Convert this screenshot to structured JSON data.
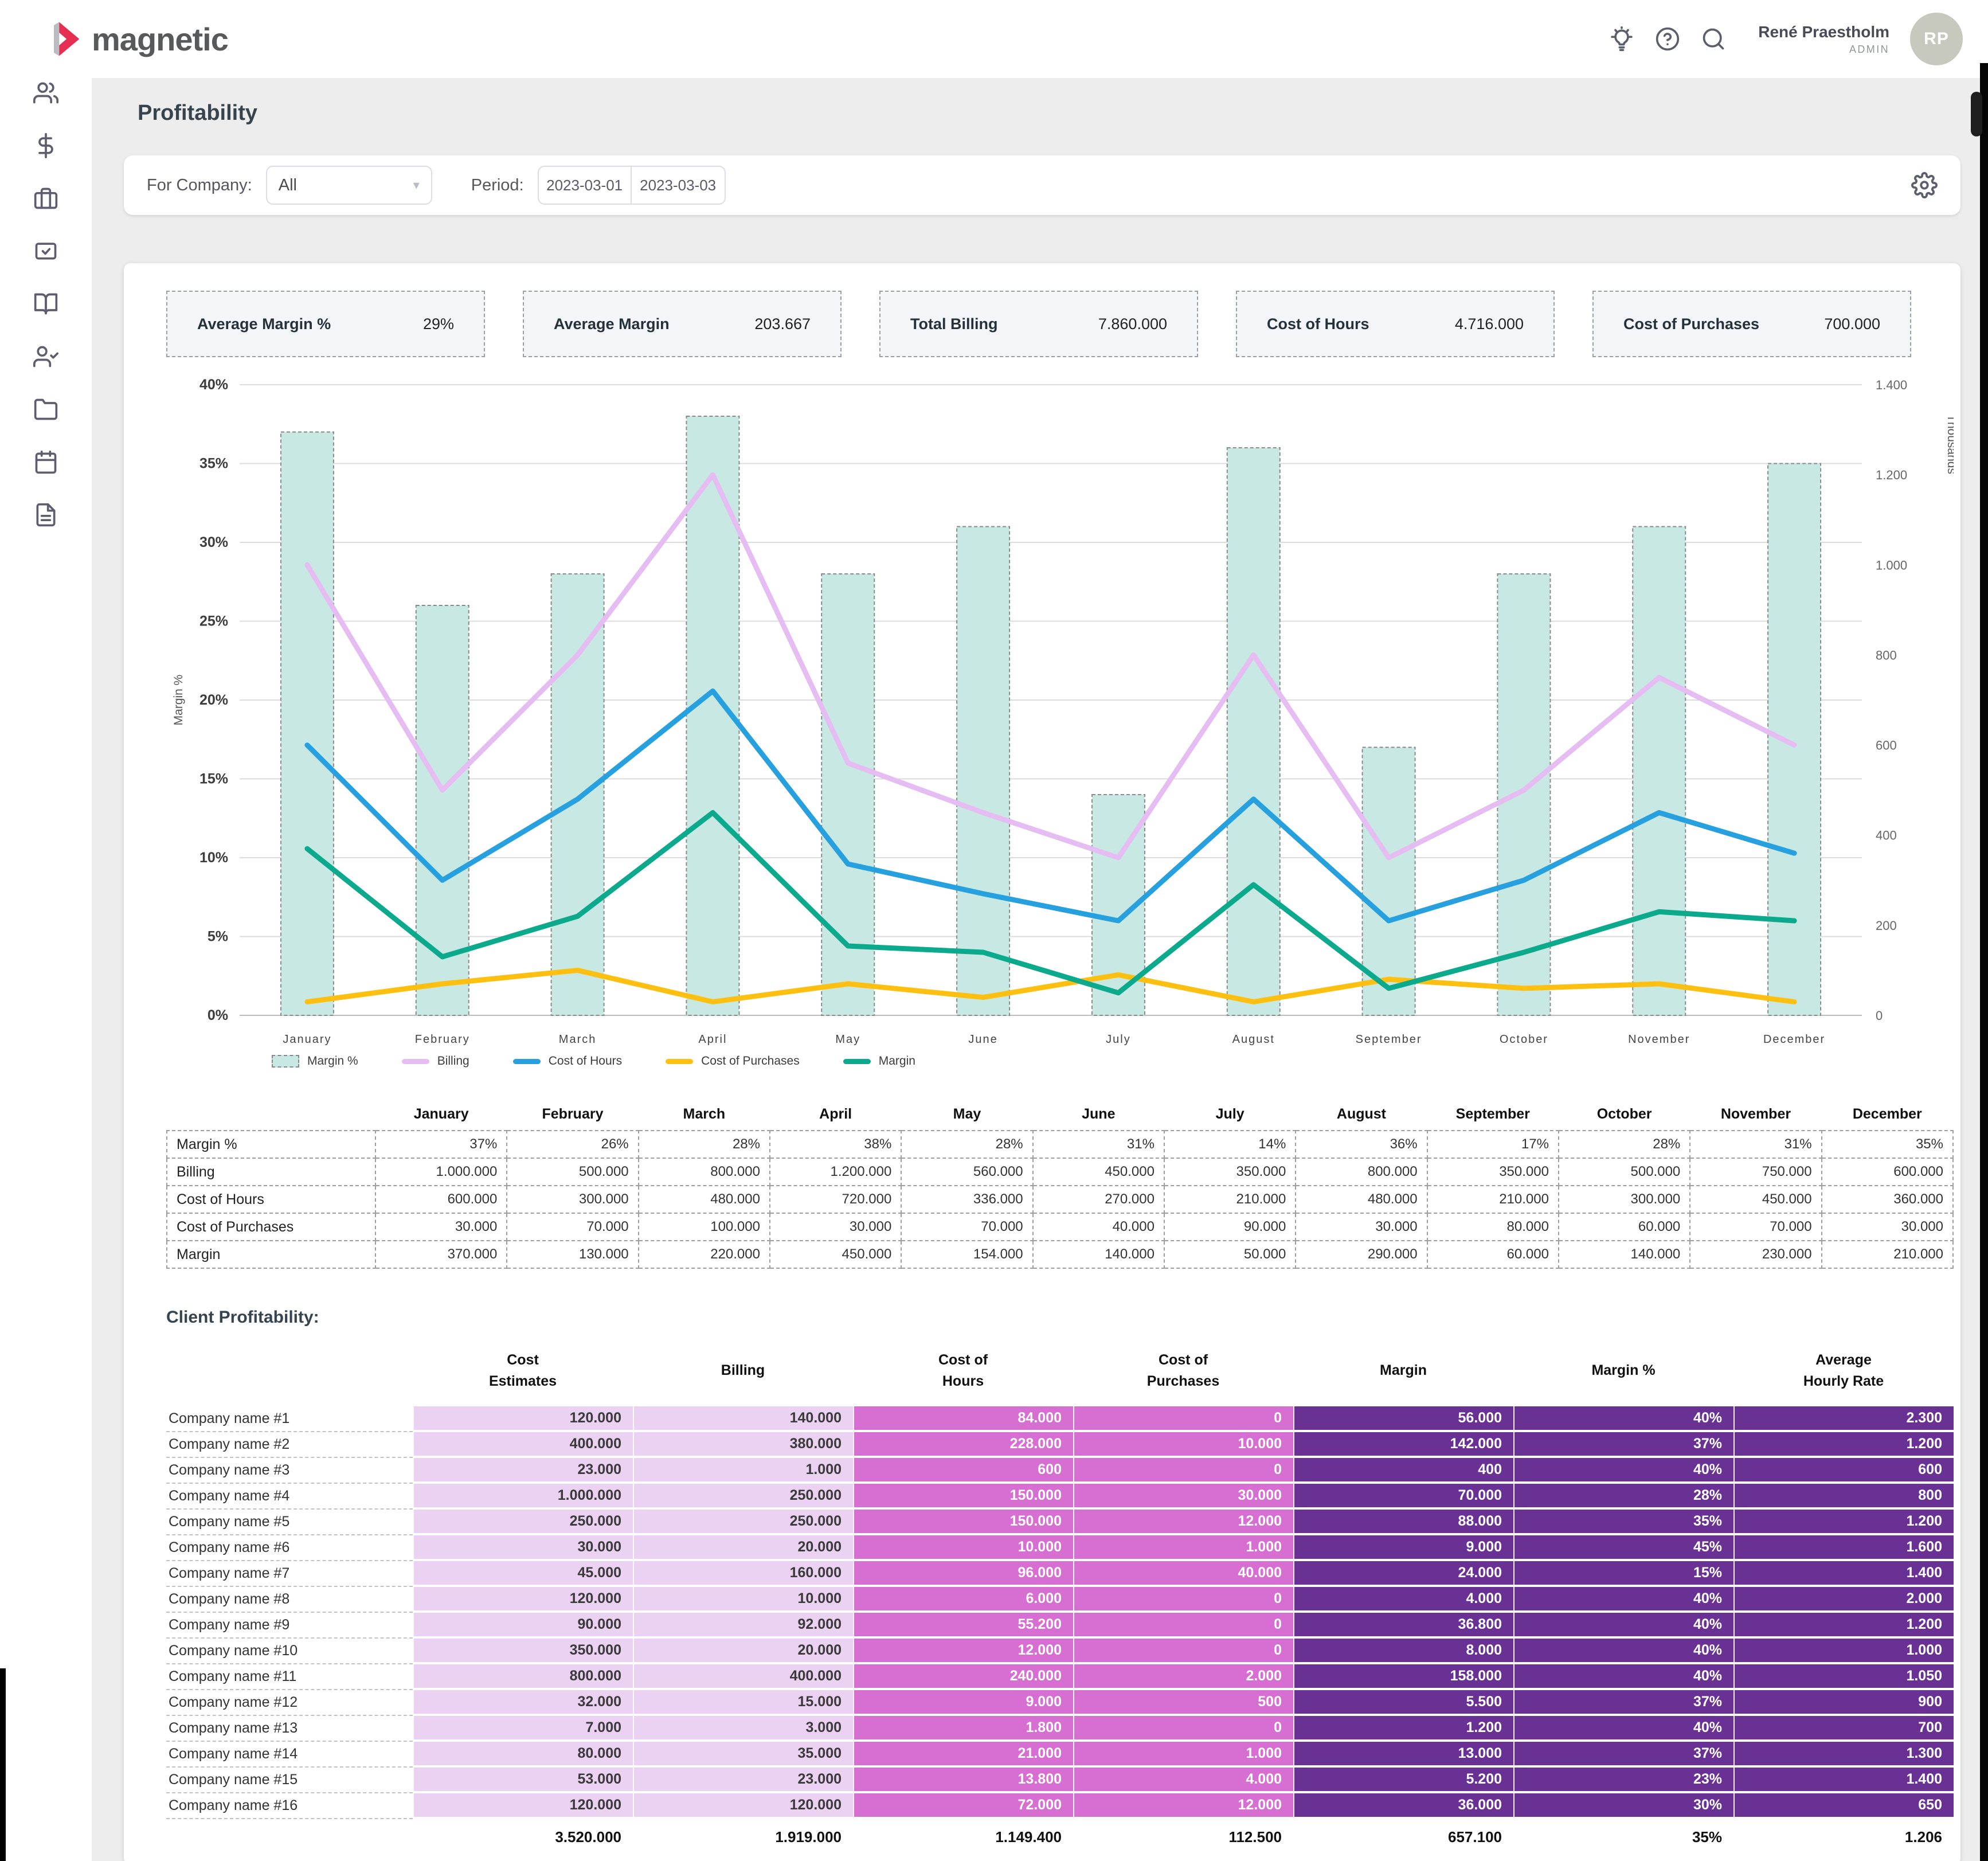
{
  "topbar": {
    "brand": "magnetic",
    "user_name": "René Praestholm",
    "user_role": "ADMIN",
    "avatar_initials": "RP",
    "icons": [
      "lightbulb-icon",
      "help-icon",
      "search-icon"
    ]
  },
  "sidebar": {
    "icons": [
      "home",
      "users",
      "dollar",
      "briefcase",
      "tasks",
      "book",
      "user-check",
      "folder",
      "calendar",
      "document"
    ]
  },
  "page": {
    "title": "Profitability"
  },
  "filters": {
    "company_label": "For Company:",
    "company_value": "All",
    "period_label": "Period:",
    "period_from": "2023-03-01",
    "period_to": "2023-03-03"
  },
  "kpis": [
    {
      "label": "Average Margin %",
      "value": "29%"
    },
    {
      "label": "Average Margin",
      "value": "203.667"
    },
    {
      "label": "Total Billing",
      "value": "7.860.000"
    },
    {
      "label": "Cost of Hours",
      "value": "4.716.000"
    },
    {
      "label": "Cost of Purchases",
      "value": "700.000"
    }
  ],
  "chart_data": {
    "type": "combo",
    "categories": [
      "January",
      "February",
      "March",
      "April",
      "May",
      "June",
      "July",
      "August",
      "September",
      "October",
      "November",
      "December"
    ],
    "bar_series": {
      "name": "Margin %",
      "values": [
        37,
        26,
        28,
        38,
        28,
        31,
        14,
        36,
        17,
        28,
        31,
        35
      ],
      "axis": "left",
      "color": "#c8e9e3"
    },
    "line_series": [
      {
        "name": "Billing",
        "values": [
          1000,
          500,
          800,
          1200,
          560,
          450,
          350,
          800,
          350,
          500,
          750,
          600
        ],
        "color": "#e5bdf2"
      },
      {
        "name": "Cost of Hours",
        "values": [
          600,
          300,
          480,
          720,
          336,
          270,
          210,
          480,
          210,
          300,
          450,
          360
        ],
        "color": "#27a0e0"
      },
      {
        "name": "Cost of Purchases",
        "values": [
          30,
          70,
          100,
          30,
          70,
          40,
          90,
          30,
          80,
          60,
          70,
          30
        ],
        "color": "#fdc011"
      },
      {
        "name": "Margin",
        "values": [
          370,
          130,
          220,
          450,
          154,
          140,
          50,
          290,
          60,
          140,
          230,
          210
        ],
        "color": "#0caa8c"
      }
    ],
    "left_axis": {
      "title": "Margin %",
      "min": 0,
      "max": 40,
      "step": 5,
      "format": "percent"
    },
    "right_axis": {
      "title": "Thousands",
      "min": 0,
      "max": 1400,
      "step": 200
    },
    "grid": true,
    "legend_position": "bottom"
  },
  "monthly_table": {
    "columns": [
      "January",
      "February",
      "March",
      "April",
      "May",
      "June",
      "July",
      "August",
      "September",
      "October",
      "November",
      "December"
    ],
    "rows": [
      {
        "label": "Margin %",
        "values": [
          "37%",
          "26%",
          "28%",
          "38%",
          "28%",
          "31%",
          "14%",
          "36%",
          "17%",
          "28%",
          "31%",
          "35%"
        ]
      },
      {
        "label": "Billing",
        "values": [
          "1.000.000",
          "500.000",
          "800.000",
          "1.200.000",
          "560.000",
          "450.000",
          "350.000",
          "800.000",
          "350.000",
          "500.000",
          "750.000",
          "600.000"
        ]
      },
      {
        "label": "Cost of Hours",
        "values": [
          "600.000",
          "300.000",
          "480.000",
          "720.000",
          "336.000",
          "270.000",
          "210.000",
          "480.000",
          "210.000",
          "300.000",
          "450.000",
          "360.000"
        ]
      },
      {
        "label": "Cost of Purchases",
        "values": [
          "30.000",
          "70.000",
          "100.000",
          "30.000",
          "70.000",
          "40.000",
          "90.000",
          "30.000",
          "80.000",
          "60.000",
          "70.000",
          "30.000"
        ]
      },
      {
        "label": "Margin",
        "values": [
          "370.000",
          "130.000",
          "220.000",
          "450.000",
          "154.000",
          "140.000",
          "50.000",
          "290.000",
          "60.000",
          "140.000",
          "230.000",
          "210.000"
        ]
      }
    ]
  },
  "client_table": {
    "title": "Client Profitability:",
    "columns": [
      "Cost\nEstimates",
      "Billing",
      "Cost of\nHours",
      "Cost of\nPurchases",
      "Margin",
      "Margin %",
      "Average\nHourly Rate"
    ],
    "rows": [
      {
        "name": "Company name #1",
        "values": [
          "120.000",
          "140.000",
          "84.000",
          "0",
          "56.000",
          "40%",
          "2.300"
        ]
      },
      {
        "name": "Company name #2",
        "values": [
          "400.000",
          "380.000",
          "228.000",
          "10.000",
          "142.000",
          "37%",
          "1.200"
        ]
      },
      {
        "name": "Company name #3",
        "values": [
          "23.000",
          "1.000",
          "600",
          "0",
          "400",
          "40%",
          "600"
        ]
      },
      {
        "name": "Company name #4",
        "values": [
          "1.000.000",
          "250.000",
          "150.000",
          "30.000",
          "70.000",
          "28%",
          "800"
        ]
      },
      {
        "name": "Company name #5",
        "values": [
          "250.000",
          "250.000",
          "150.000",
          "12.000",
          "88.000",
          "35%",
          "1.200"
        ]
      },
      {
        "name": "Company name #6",
        "values": [
          "30.000",
          "20.000",
          "10.000",
          "1.000",
          "9.000",
          "45%",
          "1.600"
        ]
      },
      {
        "name": "Company name #7",
        "values": [
          "45.000",
          "160.000",
          "96.000",
          "40.000",
          "24.000",
          "15%",
          "1.400"
        ]
      },
      {
        "name": "Company name #8",
        "values": [
          "120.000",
          "10.000",
          "6.000",
          "0",
          "4.000",
          "40%",
          "2.000"
        ]
      },
      {
        "name": "Company name #9",
        "values": [
          "90.000",
          "92.000",
          "55.200",
          "0",
          "36.800",
          "40%",
          "1.200"
        ]
      },
      {
        "name": "Company name #10",
        "values": [
          "350.000",
          "20.000",
          "12.000",
          "0",
          "8.000",
          "40%",
          "1.000"
        ]
      },
      {
        "name": "Company name #11",
        "values": [
          "800.000",
          "400.000",
          "240.000",
          "2.000",
          "158.000",
          "40%",
          "1.050"
        ]
      },
      {
        "name": "Company name #12",
        "values": [
          "32.000",
          "15.000",
          "9.000",
          "500",
          "5.500",
          "37%",
          "900"
        ]
      },
      {
        "name": "Company name #13",
        "values": [
          "7.000",
          "3.000",
          "1.800",
          "0",
          "1.200",
          "40%",
          "700"
        ]
      },
      {
        "name": "Company name #14",
        "values": [
          "80.000",
          "35.000",
          "21.000",
          "1.000",
          "13.000",
          "37%",
          "1.300"
        ]
      },
      {
        "name": "Company name #15",
        "values": [
          "53.000",
          "23.000",
          "13.800",
          "4.000",
          "5.200",
          "23%",
          "1.400"
        ]
      },
      {
        "name": "Company name #16",
        "values": [
          "120.000",
          "120.000",
          "72.000",
          "12.000",
          "36.000",
          "30%",
          "650"
        ]
      }
    ],
    "totals": [
      "3.520.000",
      "1.919.000",
      "1.149.400",
      "112.500",
      "657.100",
      "35%",
      "1.206"
    ]
  },
  "colors": {
    "logo_red": "#e62e52",
    "logo_gray": "#b9bcc0",
    "bar_fill": "#c8e9e3",
    "billing_line": "#e5bdf2",
    "cost_of_hours_line": "#27a0e0",
    "cost_of_purchases_line": "#fdc011",
    "margin_line": "#0caa8c",
    "client_light": "#ecd2f2",
    "client_mid": "#d66fd1",
    "client_dark": "#6a3195",
    "client_light_text": "#3a3a3a",
    "client_dark_text": "#ffffff"
  }
}
